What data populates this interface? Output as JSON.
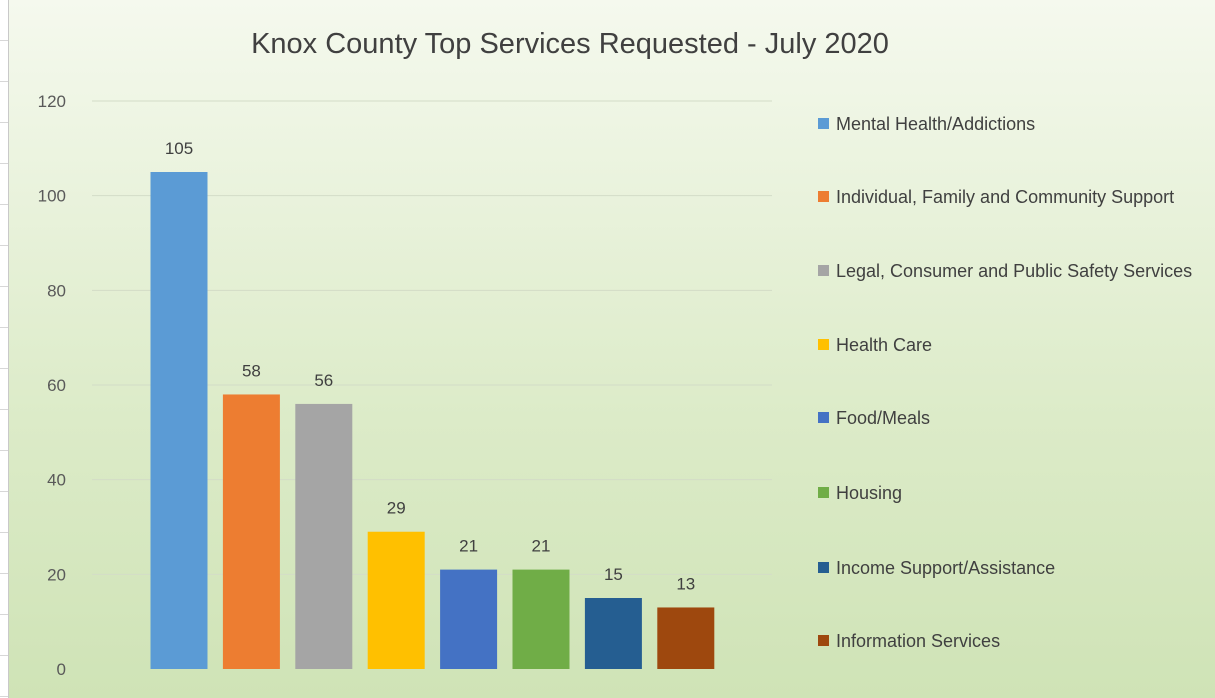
{
  "chart_data": {
    "type": "bar",
    "title": "Knox County Top Services Requested - July 2020",
    "xlabel": "",
    "ylabel": "",
    "ylim": [
      0,
      120
    ],
    "yticks": [
      0,
      20,
      40,
      60,
      80,
      100,
      120
    ],
    "grid": true,
    "legend_position": "right",
    "series": [
      {
        "name": "Mental Health/Addictions",
        "value": 105,
        "color": "#5b9bd5"
      },
      {
        "name": "Individual, Family and Community Support",
        "value": 58,
        "color": "#ed7d31"
      },
      {
        "name": "Legal, Consumer and Public Safety Services",
        "value": 56,
        "color": "#a5a5a5"
      },
      {
        "name": "Health Care",
        "value": 29,
        "color": "#ffc000"
      },
      {
        "name": "Food/Meals",
        "value": 21,
        "color": "#4472c4"
      },
      {
        "name": "Housing",
        "value": 21,
        "color": "#70ad47"
      },
      {
        "name": "Income Support/Assistance",
        "value": 15,
        "color": "#255e91"
      },
      {
        "name": "Information Services",
        "value": 13,
        "color": "#9e480e"
      }
    ]
  }
}
